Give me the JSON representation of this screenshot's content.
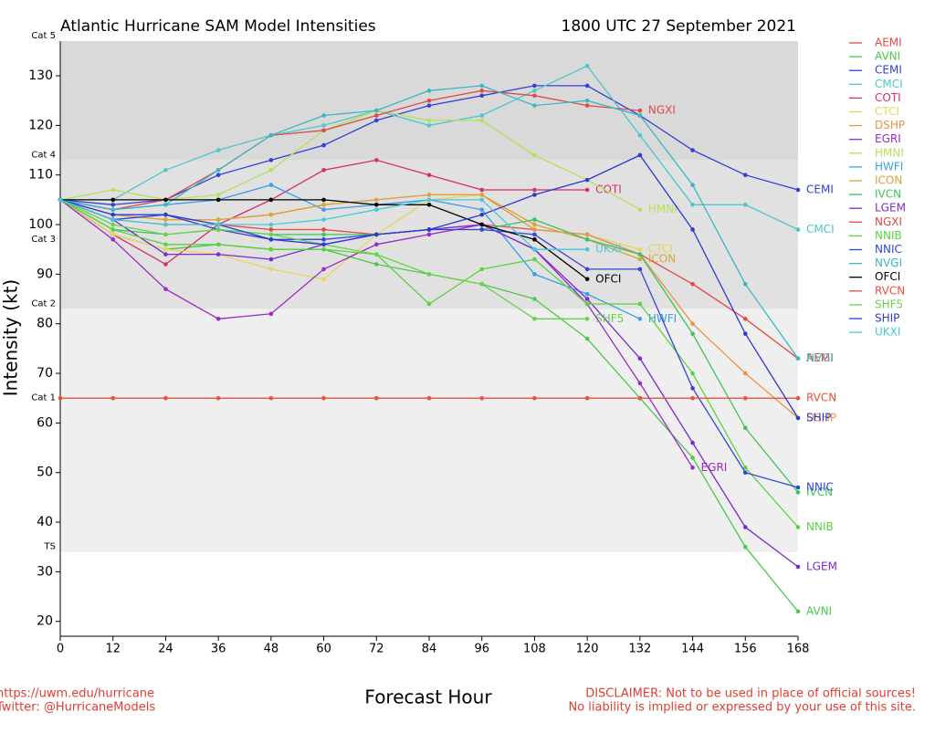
{
  "chart_data": {
    "type": "line",
    "title": "Atlantic Hurricane SAM Model Intensities",
    "subtitle": "1800 UTC 27 September 2021",
    "xlabel": "Forecast Hour",
    "ylabel": "Intensity (kt)",
    "credits": [
      "https://uwm.edu/hurricane",
      "Twitter: @HurricaneModels"
    ],
    "disclaimer": [
      "DISCLAIMER: Not to be used in place of official sources!",
      "No liability is implied or expressed by your use of this site."
    ],
    "x": [
      0,
      12,
      24,
      36,
      48,
      60,
      72,
      84,
      96,
      108,
      120,
      132,
      144,
      156,
      168
    ],
    "xlim": [
      0,
      168
    ],
    "xticks": [
      0,
      12,
      24,
      36,
      48,
      60,
      72,
      84,
      96,
      108,
      120,
      132,
      144,
      156,
      168
    ],
    "ylim": [
      17,
      137
    ],
    "yticks": [
      20,
      30,
      40,
      50,
      60,
      70,
      80,
      90,
      100,
      110,
      120,
      130
    ],
    "category_bands": [
      {
        "label": "Cat 5",
        "value": 137
      },
      {
        "label": "Cat 4",
        "value": 113,
        "color": "#d9d9d9"
      },
      {
        "label": "Cat 3",
        "value": 96,
        "color": "#e1e1e1"
      },
      {
        "label": "Cat 2",
        "value": 83,
        "color": "#e1e1e1"
      },
      {
        "label": "Cat 1",
        "value": 64,
        "color": "#efefef"
      },
      {
        "label": "TS",
        "value": 34,
        "color": "#efefef"
      }
    ],
    "series": [
      {
        "name": "AEMI",
        "color": "#e8483f",
        "values": [
          105,
          101,
          100,
          100,
          99,
          99,
          98,
          99,
          100,
          99,
          98,
          94,
          88,
          81,
          73
        ]
      },
      {
        "name": "AVNI",
        "color": "#4cc94c",
        "values": [
          105,
          98,
          95,
          96,
          95,
          95,
          92,
          90,
          88,
          85,
          77,
          65,
          53,
          35,
          22
        ]
      },
      {
        "name": "CEMI",
        "color": "#3340d6",
        "values": [
          105,
          104,
          105,
          110,
          113,
          116,
          121,
          124,
          126,
          128,
          128,
          122,
          115,
          110,
          107
        ]
      },
      {
        "name": "CMCI",
        "color": "#4cc7c9",
        "values": [
          105,
          105,
          111,
          115,
          118,
          120,
          123,
          120,
          122,
          127,
          132,
          118,
          104,
          104,
          99
        ]
      },
      {
        "name": "COTI",
        "color": "#d62f6a",
        "values": [
          105,
          98,
          92,
          100,
          105,
          111,
          113,
          110,
          107,
          107,
          107,
          null,
          null,
          null,
          null
        ]
      },
      {
        "name": "CTCI",
        "color": "#e8d55a",
        "values": [
          105,
          98,
          95,
          94,
          91,
          89,
          98,
          105,
          106,
          99,
          98,
          95,
          null,
          null,
          null
        ]
      },
      {
        "name": "DSHP",
        "color": "#e8934a",
        "values": [
          105,
          102,
          101,
          101,
          102,
          104,
          105,
          106,
          106,
          99,
          98,
          94,
          80,
          70,
          61
        ]
      },
      {
        "name": "EGRI",
        "color": "#9b2ac9",
        "values": [
          105,
          97,
          87,
          81,
          82,
          91,
          96,
          98,
          100,
          95,
          84,
          68,
          51,
          null,
          null
        ]
      },
      {
        "name": "HMNI",
        "color": "#b7e05a",
        "values": [
          105,
          107,
          105,
          106,
          111,
          119,
          123,
          121,
          121,
          114,
          109,
          103,
          null,
          null,
          null
        ]
      },
      {
        "name": "HWFI",
        "color": "#3a9ee8",
        "values": [
          105,
          103,
          104,
          105,
          108,
          103,
          104,
          105,
          103,
          90,
          86,
          81,
          null,
          null,
          null
        ]
      },
      {
        "name": "ICON",
        "color": "#d9a53a",
        "values": [
          105,
          102,
          101,
          101,
          102,
          104,
          105,
          106,
          106,
          100,
          97,
          93,
          null,
          null,
          null
        ]
      },
      {
        "name": "IVCN",
        "color": "#3cc45a",
        "values": [
          105,
          99,
          98,
          99,
          98,
          98,
          98,
          99,
          99,
          101,
          97,
          94,
          78,
          59,
          46
        ]
      },
      {
        "name": "LGEM",
        "color": "#7a2ad6",
        "values": [
          105,
          101,
          94,
          94,
          93,
          96,
          98,
          99,
          100,
          95,
          85,
          73,
          56,
          39,
          31
        ]
      },
      {
        "name": "NGXI",
        "color": "#e04a48",
        "values": [
          105,
          103,
          105,
          111,
          118,
          119,
          122,
          125,
          127,
          126,
          124,
          123,
          null,
          null,
          null
        ]
      },
      {
        "name": "NNIB",
        "color": "#5bd33c",
        "values": [
          105,
          99,
          96,
          96,
          95,
          95,
          94,
          84,
          91,
          93,
          84,
          84,
          70,
          51,
          39
        ]
      },
      {
        "name": "NNIC",
        "color": "#3346d9",
        "values": [
          105,
          101,
          102,
          99,
          97,
          97,
          98,
          99,
          99,
          98,
          91,
          91,
          67,
          50,
          47
        ]
      },
      {
        "name": "NVGI",
        "color": "#3ab7c4",
        "values": [
          105,
          103,
          104,
          111,
          118,
          122,
          123,
          127,
          128,
          124,
          125,
          122,
          108,
          88,
          73
        ]
      },
      {
        "name": "OFCI",
        "color": "#000000",
        "values": [
          105,
          105,
          105,
          105,
          105,
          105,
          104,
          104,
          100,
          97,
          89,
          null,
          null,
          null,
          null
        ]
      },
      {
        "name": "RVCN",
        "color": "#e8503f",
        "values": [
          65,
          65,
          65,
          65,
          65,
          65,
          65,
          65,
          65,
          65,
          65,
          65,
          65,
          65,
          65
        ]
      },
      {
        "name": "SHF5",
        "color": "#66d44a",
        "values": [
          105,
          100,
          98,
          99,
          98,
          96,
          94,
          90,
          88,
          81,
          81,
          null,
          null,
          null,
          null
        ]
      },
      {
        "name": "SHIP",
        "color": "#2c3ad1",
        "values": [
          105,
          102,
          102,
          100,
          97,
          96,
          98,
          99,
          102,
          106,
          109,
          114,
          99,
          78,
          61
        ]
      },
      {
        "name": "UKXI",
        "color": "#44c9d9",
        "values": [
          105,
          101,
          100,
          100,
          100,
          101,
          103,
          105,
          105,
          95,
          95,
          null,
          null,
          null,
          null
        ]
      }
    ]
  }
}
